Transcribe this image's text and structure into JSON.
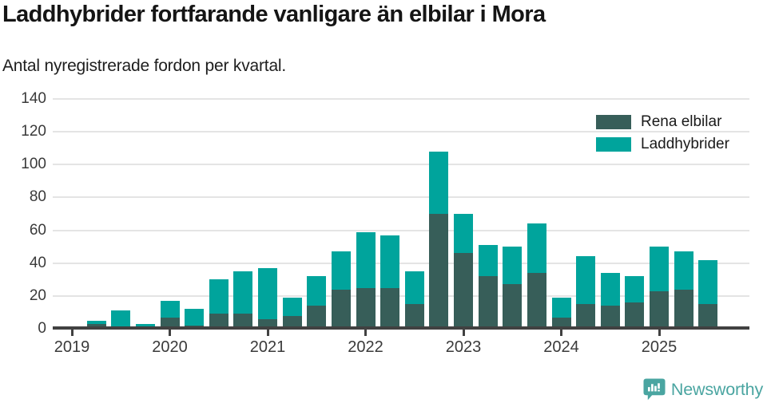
{
  "title": "Laddhybrider fortfarande vanligare än elbilar i Mora",
  "subtitle": "Antal nyregistrerade fordon per kvartal.",
  "footer": {
    "brand": "Newsworthy"
  },
  "colors": {
    "rena_elbilar": "#375e59",
    "laddhybrider": "#00a49c",
    "gridline": "#e4e4e4",
    "axis": "#414141",
    "brand_teal": "#4aa5a1",
    "title_text": "#151515",
    "axis_text": "#3a3a3a"
  },
  "icons": {
    "logo": "newsworthy-speech-bubble-bar-chart-icon"
  },
  "chart_data": {
    "type": "bar",
    "stacked": true,
    "title": "Laddhybrider fortfarande vanligare än elbilar i Mora",
    "subtitle": "Antal nyregistrerade fordon per kvartal.",
    "xlabel": "",
    "ylabel": "",
    "grid": true,
    "legend_position": "top-right",
    "ylim": [
      0,
      140
    ],
    "yticks": [
      0,
      20,
      40,
      60,
      80,
      100,
      120,
      140
    ],
    "year_labels": [
      "2019",
      "2020",
      "2021",
      "2022",
      "2023",
      "2024",
      "2025"
    ],
    "quarters": [
      "2019 Q1",
      "2019 Q2",
      "2019 Q3",
      "2019 Q4",
      "2020 Q1",
      "2020 Q2",
      "2020 Q3",
      "2020 Q4",
      "2021 Q1",
      "2021 Q2",
      "2021 Q3",
      "2021 Q4",
      "2022 Q1",
      "2022 Q2",
      "2022 Q3",
      "2022 Q4",
      "2023 Q1",
      "2023 Q2",
      "2023 Q3",
      "2023 Q4",
      "2024 Q1",
      "2024 Q2",
      "2024 Q3",
      "2024 Q4",
      "2025 Q1",
      "2025 Q2",
      "2025 Q3"
    ],
    "series": [
      {
        "name": "Rena elbilar",
        "color": "#375e59",
        "values": [
          0,
          3,
          1,
          1,
          7,
          2,
          9,
          9,
          6,
          8,
          14,
          24,
          25,
          25,
          15,
          70,
          46,
          32,
          27,
          34,
          7,
          15,
          14,
          16,
          23,
          24,
          15
        ]
      },
      {
        "name": "Laddhybrider",
        "color": "#00a49c",
        "values": [
          0,
          2,
          10,
          2,
          10,
          10,
          21,
          26,
          31,
          11,
          18,
          23,
          34,
          32,
          20,
          38,
          24,
          19,
          23,
          30,
          12,
          29,
          20,
          16,
          27,
          23,
          27
        ]
      }
    ]
  }
}
